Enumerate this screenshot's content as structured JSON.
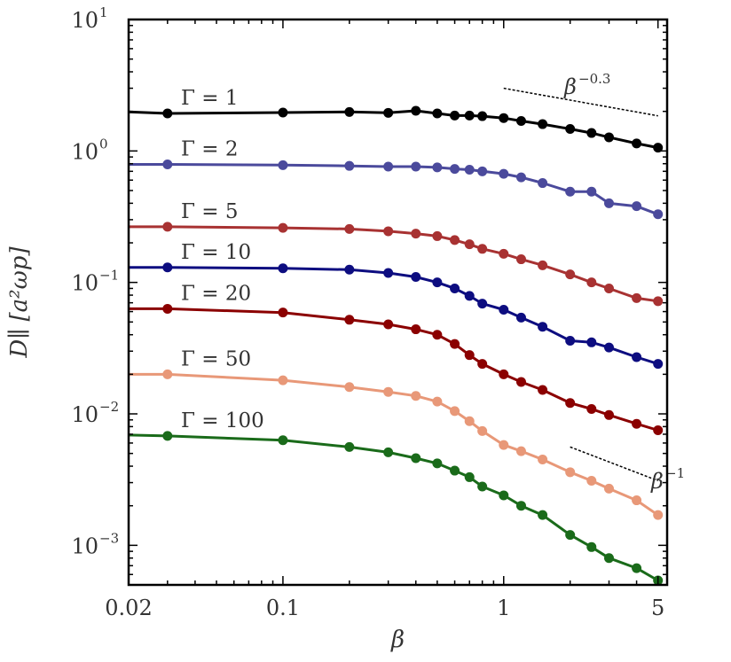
{
  "chart_data": {
    "type": "line",
    "xlabel": "β",
    "ylabel": "D∥ [a²ωp]",
    "xscale": "log",
    "yscale": "log",
    "xlim": [
      0.02,
      5.5
    ],
    "ylim": [
      0.0005,
      10
    ],
    "grid": false,
    "x_ticks": [
      {
        "value": 0.02,
        "label": "0.02"
      },
      {
        "value": 0.1,
        "label": "0.1"
      },
      {
        "value": 1,
        "label": "1"
      },
      {
        "value": 5,
        "label": "5"
      }
    ],
    "y_ticks": [
      {
        "value": 10,
        "base": "10",
        "exp": "1"
      },
      {
        "value": 1,
        "base": "10",
        "exp": "0"
      },
      {
        "value": 0.1,
        "base": "10",
        "exp": "−1"
      },
      {
        "value": 0.01,
        "base": "10",
        "exp": "−2"
      },
      {
        "value": 0.001,
        "base": "10",
        "exp": "−3"
      }
    ],
    "series": [
      {
        "name": "Γ = 1",
        "color": "#000000",
        "x": [
          0.02,
          0.03,
          0.1,
          0.2,
          0.3,
          0.4,
          0.5,
          0.6,
          0.7,
          0.8,
          1.0,
          1.2,
          1.5,
          2.0,
          2.5,
          3.0,
          4.0,
          5.0
        ],
        "y": [
          1.98,
          1.93,
          1.96,
          1.98,
          1.95,
          2.02,
          1.93,
          1.86,
          1.86,
          1.84,
          1.78,
          1.69,
          1.6,
          1.47,
          1.37,
          1.27,
          1.14,
          1.06
        ]
      },
      {
        "name": "Γ = 2",
        "color": "#4b4a9c",
        "x": [
          0.02,
          0.03,
          0.1,
          0.2,
          0.3,
          0.4,
          0.5,
          0.6,
          0.7,
          0.8,
          1.0,
          1.2,
          1.5,
          2.0,
          2.5,
          3.0,
          4.0,
          5.0
        ],
        "y": [
          0.79,
          0.79,
          0.78,
          0.77,
          0.76,
          0.76,
          0.75,
          0.73,
          0.72,
          0.7,
          0.67,
          0.63,
          0.57,
          0.49,
          0.49,
          0.4,
          0.38,
          0.33
        ]
      },
      {
        "name": "Γ = 5",
        "color": "#a83232",
        "x": [
          0.02,
          0.03,
          0.1,
          0.2,
          0.3,
          0.4,
          0.5,
          0.6,
          0.7,
          0.8,
          1.0,
          1.2,
          1.5,
          2.0,
          2.5,
          3.0,
          4.0,
          5.0
        ],
        "y": [
          0.265,
          0.265,
          0.26,
          0.255,
          0.245,
          0.235,
          0.225,
          0.21,
          0.195,
          0.18,
          0.165,
          0.15,
          0.135,
          0.115,
          0.1,
          0.09,
          0.076,
          0.072
        ]
      },
      {
        "name": "Γ = 10",
        "color": "#0d0d80",
        "x": [
          0.02,
          0.03,
          0.1,
          0.2,
          0.3,
          0.4,
          0.5,
          0.6,
          0.7,
          0.8,
          1.0,
          1.2,
          1.5,
          2.0,
          2.5,
          3.0,
          4.0,
          5.0
        ],
        "y": [
          0.13,
          0.13,
          0.128,
          0.125,
          0.118,
          0.11,
          0.1,
          0.09,
          0.079,
          0.069,
          0.062,
          0.054,
          0.046,
          0.036,
          0.035,
          0.032,
          0.027,
          0.024
        ]
      },
      {
        "name": "Γ = 20",
        "color": "#8b0000",
        "x": [
          0.02,
          0.03,
          0.1,
          0.2,
          0.3,
          0.4,
          0.5,
          0.6,
          0.7,
          0.8,
          1.0,
          1.2,
          1.5,
          2.0,
          2.5,
          3.0,
          4.0,
          5.0
        ],
        "y": [
          0.063,
          0.063,
          0.059,
          0.052,
          0.048,
          0.044,
          0.04,
          0.034,
          0.028,
          0.024,
          0.02,
          0.0175,
          0.0152,
          0.0121,
          0.0109,
          0.0098,
          0.0084,
          0.0075
        ]
      },
      {
        "name": "Γ = 50",
        "color": "#e89878",
        "x": [
          0.02,
          0.03,
          0.1,
          0.2,
          0.3,
          0.4,
          0.5,
          0.6,
          0.7,
          0.8,
          1.0,
          1.2,
          1.5,
          2.0,
          2.5,
          3.0,
          4.0,
          5.0
        ],
        "y": [
          0.02,
          0.02,
          0.018,
          0.016,
          0.0147,
          0.0137,
          0.0124,
          0.0105,
          0.0088,
          0.0074,
          0.0058,
          0.0052,
          0.0045,
          0.0036,
          0.0031,
          0.0027,
          0.0022,
          0.0017
        ]
      },
      {
        "name": "Γ = 100",
        "color": "#1a6b1a",
        "x": [
          0.02,
          0.03,
          0.1,
          0.2,
          0.3,
          0.4,
          0.5,
          0.6,
          0.7,
          0.8,
          1.0,
          1.2,
          1.5,
          2.0,
          2.5,
          3.0,
          4.0,
          5.0
        ],
        "y": [
          0.0069,
          0.0068,
          0.0063,
          0.0056,
          0.0051,
          0.0046,
          0.0042,
          0.0037,
          0.0033,
          0.0028,
          0.0024,
          0.002,
          0.0017,
          0.0012,
          0.00097,
          0.0008,
          0.00067,
          0.00054
        ]
      }
    ],
    "annotations": [
      {
        "text": "β",
        "exp": "−0.3",
        "line_x": [
          1.0,
          5.0
        ],
        "line_y": [
          3.0,
          1.85
        ]
      },
      {
        "text": "β",
        "exp": "−1",
        "line_x": [
          2.0,
          5.0
        ],
        "line_y": [
          0.0056,
          0.0031
        ]
      }
    ]
  }
}
